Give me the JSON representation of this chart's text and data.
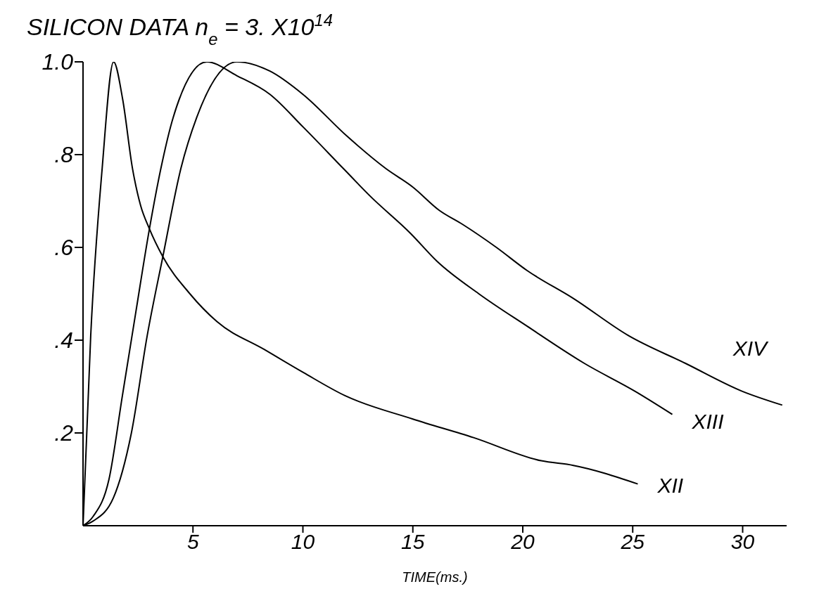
{
  "chart_data": {
    "type": "line",
    "title": "SILICON DATA n$_{e}$ = 3. X10$^{14}$",
    "xlabel": "TIME(ms.)",
    "xlim": [
      0,
      32
    ],
    "xticks": [
      5,
      10,
      15,
      20,
      25,
      30
    ],
    "ylim": [
      0,
      1
    ],
    "yticks": [
      {
        "value": 0.2,
        "label": ".2"
      },
      {
        "value": 0.4,
        "label": ".4"
      },
      {
        "value": 0.6,
        "label": ".6"
      },
      {
        "value": 0.8,
        "label": ".8"
      },
      {
        "value": 1,
        "label": "1.0"
      }
    ],
    "grid": false,
    "legend": false,
    "marker": "none",
    "line_style": "solid",
    "series": [
      {
        "name": "XII",
        "color": "#000000",
        "x": [
          0,
          0.35,
          0.87,
          1.39,
          1.8,
          2.25,
          2.62,
          3.02,
          3.63,
          4.86,
          6.09,
          8.24,
          10.03,
          11.93,
          15.0,
          17.76,
          20.84,
          22.3,
          25.23
        ],
        "values": [
          0,
          0.41,
          0.77,
          1.0,
          0.92,
          0.77,
          0.69,
          0.64,
          0.58,
          0.5,
          0.44,
          0.38,
          0.33,
          0.28,
          0.23,
          0.19,
          0.14,
          0.13,
          0.09
        ]
      },
      {
        "name": "XIII",
        "color": "#000000",
        "x": [
          0,
          0.46,
          1.18,
          1.79,
          2.4,
          3.02,
          3.54,
          4.1,
          5.63,
          7.0,
          8.5,
          10.0,
          11.84,
          13.07,
          14.9,
          16.1,
          18.0,
          20.2,
          22.8,
          25.1,
          26.8
        ],
        "values": [
          0,
          0.02,
          0.1,
          0.28,
          0.46,
          0.64,
          0.77,
          0.88,
          1.0,
          0.97,
          0.93,
          0.86,
          0.77,
          0.71,
          0.63,
          0.57,
          0.5,
          0.43,
          0.35,
          0.29,
          0.24
        ]
      },
      {
        "name": "XIV",
        "color": "#000000",
        "x": [
          0,
          0.46,
          1.38,
          2.2,
          2.92,
          3.63,
          4.45,
          5.17,
          7.0,
          8.5,
          10.0,
          12.0,
          13.77,
          15.0,
          16.2,
          17.25,
          18.8,
          20.2,
          22.3,
          24.8,
          27.4,
          29.97,
          31.8
        ],
        "values": [
          0,
          0.01,
          0.06,
          0.2,
          0.41,
          0.58,
          0.77,
          0.88,
          1.0,
          0.98,
          0.93,
          0.84,
          0.77,
          0.73,
          0.68,
          0.65,
          0.6,
          0.55,
          0.49,
          0.41,
          0.35,
          0.29,
          0.26
        ]
      }
    ]
  }
}
